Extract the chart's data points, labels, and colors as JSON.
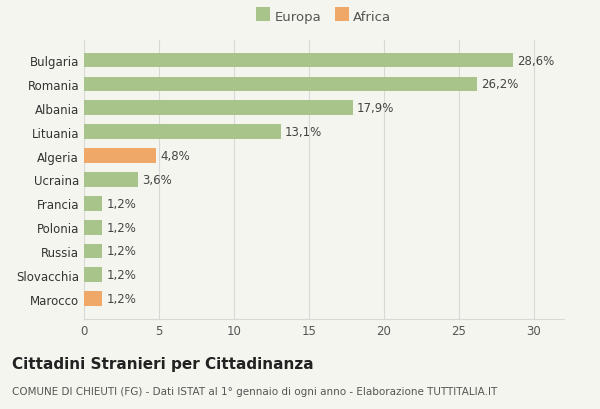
{
  "categories": [
    "Marocco",
    "Slovacchia",
    "Russia",
    "Polonia",
    "Francia",
    "Ucraina",
    "Algeria",
    "Lituania",
    "Albania",
    "Romania",
    "Bulgaria"
  ],
  "values": [
    1.2,
    1.2,
    1.2,
    1.2,
    1.2,
    3.6,
    4.8,
    13.1,
    17.9,
    26.2,
    28.6
  ],
  "colors": [
    "#f0a868",
    "#a8c48a",
    "#a8c48a",
    "#a8c48a",
    "#a8c48a",
    "#a8c48a",
    "#f0a868",
    "#a8c48a",
    "#a8c48a",
    "#a8c48a",
    "#a8c48a"
  ],
  "labels": [
    "1,2%",
    "1,2%",
    "1,2%",
    "1,2%",
    "1,2%",
    "3,6%",
    "4,8%",
    "13,1%",
    "17,9%",
    "26,2%",
    "28,6%"
  ],
  "xlim": [
    0,
    32
  ],
  "xticks": [
    0,
    5,
    10,
    15,
    20,
    25,
    30
  ],
  "legend_europa_color": "#a8c48a",
  "legend_africa_color": "#f0a868",
  "title": "Cittadini Stranieri per Cittadinanza",
  "subtitle": "COMUNE DI CHIEUTI (FG) - Dati ISTAT al 1° gennaio di ogni anno - Elaborazione TUTTITALIA.IT",
  "background_color": "#f5f5f0",
  "grid_color": "#d8d8d8",
  "title_fontsize": 11,
  "subtitle_fontsize": 7.5,
  "label_fontsize": 8.5,
  "tick_fontsize": 8.5,
  "legend_fontsize": 9.5
}
